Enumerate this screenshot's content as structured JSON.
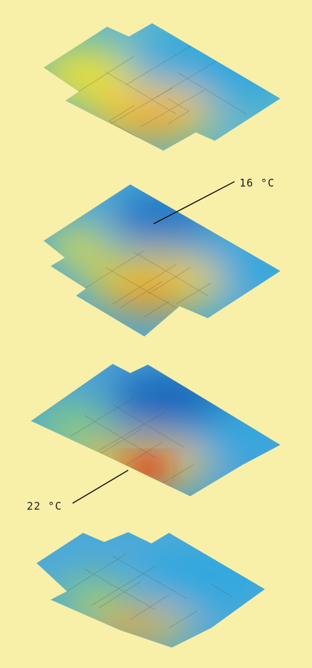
{
  "annotations": {
    "cold": {
      "label": "16 °C"
    },
    "hot": {
      "label": "22 °C"
    }
  },
  "colors": {
    "background": "#f8efa9",
    "cold_deep": "#1a6fc0",
    "cold": "#30a8e0",
    "mid": "#8fcf80",
    "warm": "#f0e040",
    "hot": "#f0a020",
    "hottest": "#d82a1a"
  }
}
